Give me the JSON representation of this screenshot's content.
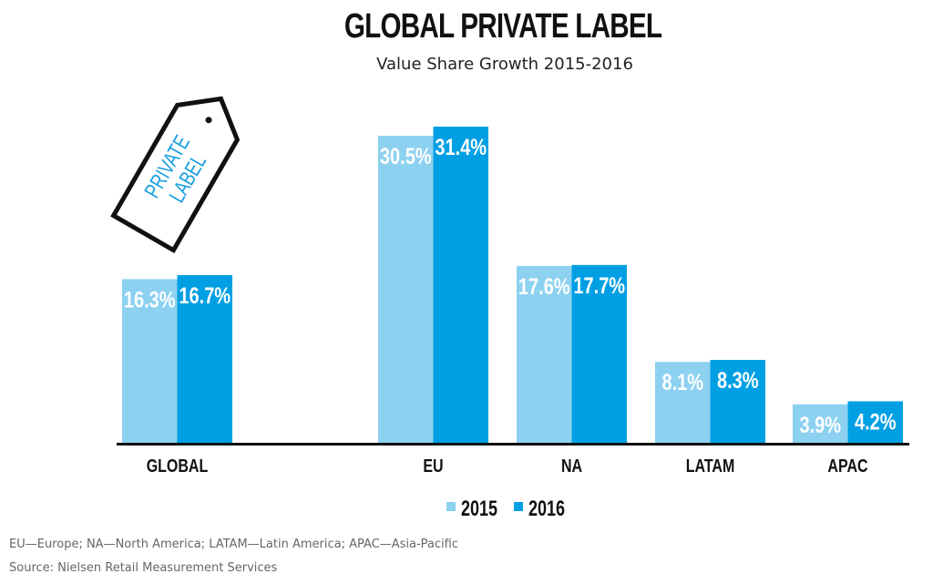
{
  "chart_data": {
    "type": "bar",
    "title": "GLOBAL PRIVATE LABEL",
    "subtitle": "Value Share Growth 2015-2016",
    "categories": [
      "GLOBAL",
      "EU",
      "NA",
      "LATAM",
      "APAC"
    ],
    "series": [
      {
        "name": "2015",
        "values": [
          16.3,
          30.5,
          17.6,
          8.1,
          3.9
        ],
        "labels": [
          "16.3%",
          "30.5%",
          "17.6%",
          "8.1%",
          "3.9%"
        ],
        "color": "#8dd1f1"
      },
      {
        "name": "2016",
        "values": [
          16.7,
          31.4,
          17.7,
          8.3,
          4.2
        ],
        "labels": [
          "16.7%",
          "31.4%",
          "17.7%",
          "8.3%",
          "4.2%"
        ],
        "color": "#009fe3"
      }
    ],
    "ylim": [
      0,
      31.4
    ],
    "grid": false,
    "legend": "bottom-center",
    "tag_text": [
      "PRIVATE",
      "LABEL"
    ]
  },
  "footnotes": {
    "abbrev": "EU—Europe; NA—North America; LATAM—Latin America; APAC—Asia-Pacific",
    "source": "Source: Nielsen Retail Measurement Services"
  }
}
